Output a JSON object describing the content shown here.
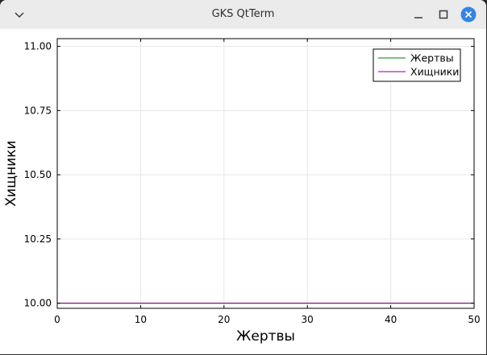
{
  "window": {
    "title": "GKS QtTerm",
    "menu_icon": "chevron-down-icon",
    "minimize_icon": "minimize-icon",
    "maximize_icon": "maximize-icon",
    "close_icon": "close-icon",
    "close_color": "#3584e4"
  },
  "chart_data": {
    "type": "line",
    "title": "",
    "xlabel": "Жертвы",
    "ylabel": "Хищники",
    "xlim": [
      0,
      50
    ],
    "ylim": [
      9.98,
      11.03
    ],
    "xticks": [
      0,
      10,
      20,
      30,
      40,
      50
    ],
    "xtick_labels": [
      "0",
      "10",
      "20",
      "30",
      "40",
      "50"
    ],
    "yticks": [
      10.0,
      10.25,
      10.5,
      10.75,
      11.0
    ],
    "ytick_labels": [
      "10.00",
      "10.25",
      "10.50",
      "10.75",
      "11.00"
    ],
    "grid": true,
    "legend_position": "top-right",
    "series": [
      {
        "name": "Жертвы",
        "color": "#008000",
        "x": [
          0,
          50
        ],
        "y": [
          10.0,
          10.0
        ]
      },
      {
        "name": "Хищники",
        "color": "#800080",
        "x": [
          0,
          50
        ],
        "y": [
          10.0,
          10.0
        ]
      }
    ]
  }
}
